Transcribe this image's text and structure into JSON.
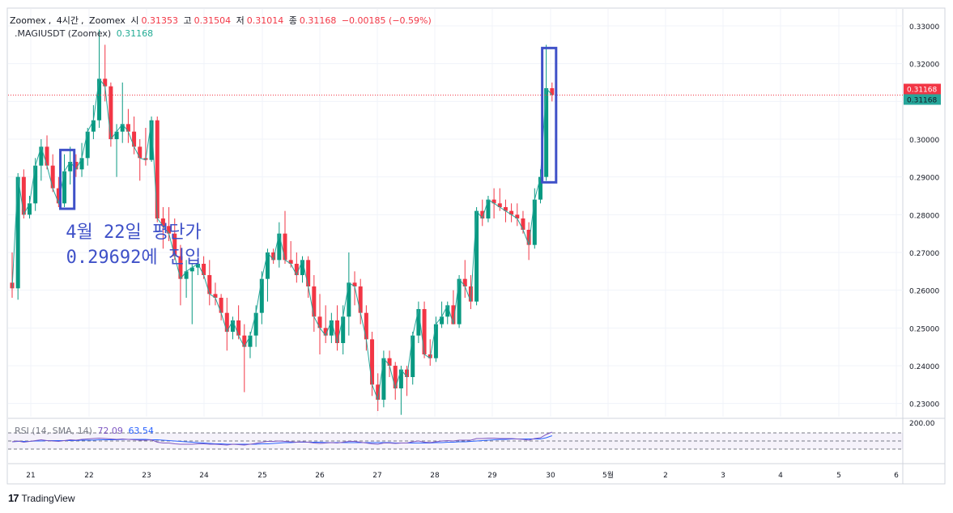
{
  "legend": {
    "line1": {
      "exchange": "Zoomex",
      "timeframe": "4시간",
      "source": "Zoomex",
      "o_label": "시",
      "o": "0.31353",
      "h_label": "고",
      "h": "0.31504",
      "l_label": "저",
      "l": "0.31014",
      "c_label": "종",
      "c": "0.31168",
      "change": "−0.00185 (−0.59%)"
    },
    "line2": {
      "symbol": ".MAGIUSDT (Zoomex)",
      "value": "0.31168"
    },
    "rsi": {
      "label": "RSI (14, SMA, 14)",
      "v1": "72.09",
      "v2": "63.54"
    }
  },
  "annotation": {
    "line1": "4월 22일 평단가",
    "line2": "0.29692에 진입"
  },
  "branding": {
    "logo_text": "TradingView",
    "logo_mark": "17"
  },
  "colors": {
    "up": "#089981",
    "down": "#f23645",
    "line": "#26a69a",
    "box": "#3f51c8",
    "rsi": "#7e57c2",
    "rsi_ma": "#2962ff"
  },
  "chart_data": {
    "type": "candlestick",
    "ylim": [
      0.2265,
      0.3345
    ],
    "y_ticks": [
      "0.33000",
      "0.32000",
      "0.31000",
      "0.30000",
      "0.29000",
      "0.28000",
      "0.27000",
      "0.26000",
      "0.25000",
      "0.24000",
      "0.23000"
    ],
    "x_labels": [
      "21",
      "22",
      "23",
      "24",
      "25",
      "26",
      "27",
      "28",
      "29",
      "30",
      "5월",
      "2",
      "3",
      "4",
      "5",
      "6"
    ],
    "last_price": {
      "close": "0.31168",
      "line": "0.31168"
    },
    "rsi_axis_label": "200.00",
    "candles": [
      [
        0.262,
        0.27,
        0.258,
        0.2605
      ],
      [
        0.2605,
        0.291,
        0.2575,
        0.29
      ],
      [
        0.29,
        0.292,
        0.279,
        0.28
      ],
      [
        0.28,
        0.285,
        0.279,
        0.283
      ],
      [
        0.283,
        0.295,
        0.281,
        0.293
      ],
      [
        0.293,
        0.3,
        0.289,
        0.298
      ],
      [
        0.298,
        0.301,
        0.292,
        0.293
      ],
      [
        0.293,
        0.296,
        0.286,
        0.287
      ],
      [
        0.287,
        0.29,
        0.282,
        0.283
      ],
      [
        0.283,
        0.296,
        0.282,
        0.2915
      ],
      [
        0.2915,
        0.298,
        0.288,
        0.294
      ],
      [
        0.294,
        0.296,
        0.29,
        0.292
      ],
      [
        0.292,
        0.299,
        0.29,
        0.295
      ],
      [
        0.295,
        0.303,
        0.293,
        0.302
      ],
      [
        0.302,
        0.309,
        0.3,
        0.305
      ],
      [
        0.305,
        0.329,
        0.303,
        0.316
      ],
      [
        0.316,
        0.325,
        0.31,
        0.314
      ],
      [
        0.314,
        0.315,
        0.298,
        0.3
      ],
      [
        0.3,
        0.304,
        0.29,
        0.302
      ],
      [
        0.302,
        0.315,
        0.299,
        0.304
      ],
      [
        0.304,
        0.308,
        0.299,
        0.302
      ],
      [
        0.302,
        0.306,
        0.296,
        0.298
      ],
      [
        0.298,
        0.3,
        0.289,
        0.295
      ],
      [
        0.295,
        0.303,
        0.293,
        0.2945
      ],
      [
        0.2945,
        0.306,
        0.294,
        0.305
      ],
      [
        0.305,
        0.306,
        0.278,
        0.279
      ],
      [
        0.279,
        0.282,
        0.271,
        0.277
      ],
      [
        0.277,
        0.282,
        0.273,
        0.275
      ],
      [
        0.275,
        0.279,
        0.268,
        0.269
      ],
      [
        0.269,
        0.272,
        0.256,
        0.263
      ],
      [
        0.263,
        0.268,
        0.258,
        0.265
      ],
      [
        0.265,
        0.267,
        0.251,
        0.266
      ],
      [
        0.266,
        0.268,
        0.264,
        0.267
      ],
      [
        0.267,
        0.269,
        0.263,
        0.264
      ],
      [
        0.264,
        0.268,
        0.256,
        0.259
      ],
      [
        0.259,
        0.262,
        0.256,
        0.258
      ],
      [
        0.258,
        0.259,
        0.252,
        0.254
      ],
      [
        0.254,
        0.258,
        0.244,
        0.249
      ],
      [
        0.249,
        0.253,
        0.247,
        0.252
      ],
      [
        0.252,
        0.256,
        0.247,
        0.248
      ],
      [
        0.248,
        0.251,
        0.233,
        0.245
      ],
      [
        0.245,
        0.249,
        0.242,
        0.248
      ],
      [
        0.248,
        0.256,
        0.245,
        0.254
      ],
      [
        0.254,
        0.265,
        0.251,
        0.263
      ],
      [
        0.263,
        0.271,
        0.257,
        0.27
      ],
      [
        0.27,
        0.271,
        0.267,
        0.268
      ],
      [
        0.268,
        0.278,
        0.266,
        0.275
      ],
      [
        0.275,
        0.281,
        0.267,
        0.268
      ],
      [
        0.268,
        0.273,
        0.266,
        0.267
      ],
      [
        0.267,
        0.27,
        0.262,
        0.264
      ],
      [
        0.264,
        0.269,
        0.262,
        0.268
      ],
      [
        0.268,
        0.269,
        0.258,
        0.261
      ],
      [
        0.261,
        0.264,
        0.249,
        0.253
      ],
      [
        0.253,
        0.259,
        0.243,
        0.25
      ],
      [
        0.25,
        0.256,
        0.246,
        0.248
      ],
      [
        0.248,
        0.254,
        0.246,
        0.252
      ],
      [
        0.252,
        0.256,
        0.244,
        0.246
      ],
      [
        0.246,
        0.256,
        0.243,
        0.253
      ],
      [
        0.253,
        0.27,
        0.248,
        0.262
      ],
      [
        0.262,
        0.265,
        0.256,
        0.261
      ],
      [
        0.261,
        0.263,
        0.251,
        0.254
      ],
      [
        0.254,
        0.256,
        0.244,
        0.247
      ],
      [
        0.247,
        0.249,
        0.232,
        0.235
      ],
      [
        0.235,
        0.238,
        0.228,
        0.231
      ],
      [
        0.231,
        0.244,
        0.229,
        0.242
      ],
      [
        0.242,
        0.244,
        0.237,
        0.24
      ],
      [
        0.24,
        0.241,
        0.231,
        0.234
      ],
      [
        0.234,
        0.24,
        0.227,
        0.239
      ],
      [
        0.239,
        0.24,
        0.232,
        0.237
      ],
      [
        0.237,
        0.249,
        0.235,
        0.248
      ],
      [
        0.248,
        0.257,
        0.246,
        0.255
      ],
      [
        0.255,
        0.257,
        0.242,
        0.243
      ],
      [
        0.243,
        0.247,
        0.24,
        0.242
      ],
      [
        0.242,
        0.253,
        0.241,
        0.251
      ],
      [
        0.251,
        0.257,
        0.25,
        0.253
      ],
      [
        0.253,
        0.257,
        0.251,
        0.256
      ],
      [
        0.256,
        0.26,
        0.251,
        0.251
      ],
      [
        0.251,
        0.264,
        0.25,
        0.263
      ],
      [
        0.263,
        0.268,
        0.258,
        0.261
      ],
      [
        0.261,
        0.264,
        0.255,
        0.257
      ],
      [
        0.257,
        0.282,
        0.256,
        0.281
      ],
      [
        0.281,
        0.284,
        0.277,
        0.279
      ],
      [
        0.279,
        0.285,
        0.278,
        0.284
      ],
      [
        0.284,
        0.287,
        0.279,
        0.283
      ],
      [
        0.283,
        0.287,
        0.281,
        0.282
      ],
      [
        0.282,
        0.284,
        0.278,
        0.281
      ],
      [
        0.281,
        0.283,
        0.278,
        0.28
      ],
      [
        0.28,
        0.283,
        0.277,
        0.279
      ],
      [
        0.279,
        0.281,
        0.275,
        0.276
      ],
      [
        0.276,
        0.278,
        0.268,
        0.272
      ],
      [
        0.272,
        0.287,
        0.271,
        0.284
      ],
      [
        0.284,
        0.292,
        0.283,
        0.29
      ],
      [
        0.29,
        0.325,
        0.289,
        0.3135
      ],
      [
        0.3135,
        0.315,
        0.31,
        0.3117
      ]
    ],
    "rsi_series": [
      48,
      50,
      47,
      49,
      51,
      53,
      51,
      50,
      49,
      51,
      53,
      52,
      54,
      55,
      56,
      57,
      56,
      55,
      54,
      55,
      54,
      53,
      52,
      52,
      53,
      47,
      45,
      45,
      43,
      42,
      42,
      42,
      43,
      43,
      42,
      42,
      41,
      40,
      42,
      41,
      40,
      42,
      44,
      47,
      49,
      49,
      50,
      49,
      48,
      47,
      48,
      47,
      45,
      44,
      45,
      46,
      45,
      47,
      49,
      49,
      47,
      45,
      43,
      42,
      45,
      45,
      44,
      45,
      45,
      48,
      50,
      47,
      46,
      48,
      50,
      51,
      50,
      52,
      52,
      52,
      56,
      56,
      57,
      57,
      56,
      56,
      56,
      55,
      54,
      52,
      56,
      58,
      66,
      72
    ],
    "rsi_ma_series": [
      48,
      49,
      49,
      49,
      50,
      50,
      51,
      51,
      51,
      51,
      51,
      51,
      52,
      52,
      52,
      53,
      53,
      53,
      53,
      54,
      54,
      54,
      54,
      54,
      53,
      53,
      52,
      51,
      50,
      49,
      48,
      47,
      46,
      45,
      44,
      43,
      43,
      42,
      42,
      42,
      42,
      42,
      42,
      43,
      43,
      44,
      45,
      46,
      46,
      47,
      47,
      47,
      47,
      47,
      46,
      46,
      46,
      46,
      46,
      46,
      46,
      46,
      46,
      46,
      46,
      46,
      45,
      45,
      45,
      45,
      45,
      45,
      45,
      46,
      46,
      47,
      47,
      48,
      48,
      49,
      50,
      51,
      52,
      53,
      54,
      54,
      55,
      55,
      55,
      55,
      55,
      55,
      58,
      63
    ],
    "entry_box_candles": [
      9,
      10
    ],
    "current_box_candles": [
      92,
      93
    ]
  }
}
